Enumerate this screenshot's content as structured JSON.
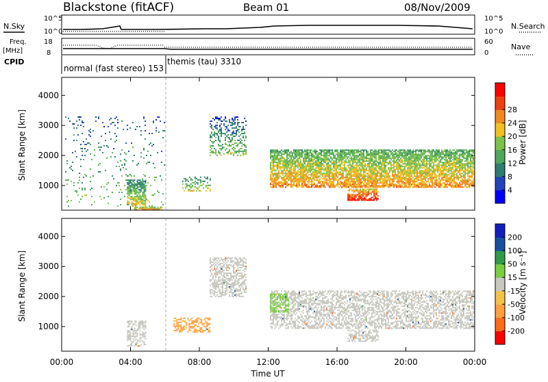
{
  "header": {
    "station": "Blackstone (fitACF)",
    "beam": "Beam 01",
    "date": "08/Nov/2009"
  },
  "left_labels": {
    "nsky": "N.Sky",
    "freq_line1": "Freq.",
    "freq_line2": "[MHz]",
    "cpid": "CPID"
  },
  "right_labels": {
    "nsearch": "N.Search",
    "nave": "Nave"
  },
  "ticks": {
    "noise_top_left": "10^5",
    "noise_bottom_left": "10^0",
    "noise_top_right": "10^5",
    "noise_bottom_right": "10^0",
    "freq_top": "18",
    "freq_bottom": "8",
    "nave_top": "60",
    "nave_bottom": "0"
  },
  "cpid": {
    "mode1": "normal (fast stereo) 153",
    "mode2": "themis (tau) 3310"
  },
  "colors": {
    "power": [
      "#0000ff",
      "#2244bb",
      "#2e7d6e",
      "#4fa75a",
      "#7cc24a",
      "#f0c020",
      "#f08a20",
      "#ee4010",
      "#ff0000"
    ],
    "velocity": [
      "#ff0000",
      "#ff6a1a",
      "#ffa040",
      "#f2c24a",
      "#c8c8c0",
      "#78d040",
      "#2f9a48",
      "#1850a0",
      "#1020c0"
    ]
  },
  "chart_data": [
    {
      "type": "heatmap",
      "quantity": "Power",
      "ylabel": "Slant Range [km]",
      "colorbar_label": "Power [dB]",
      "colorbar_ticks": [
        "4",
        "8",
        "12",
        "16",
        "20",
        "24",
        "28"
      ],
      "ylim": [
        180,
        4600
      ],
      "yticks": [
        "1000",
        "2000",
        "3000",
        "4000"
      ],
      "xlim": [
        "00:00",
        "24:00"
      ],
      "scatter_regions": [
        {
          "t_start": 0.2,
          "t_end": 6.0,
          "r_min": 300,
          "r_max": 3300,
          "level": 8,
          "density": "sparse"
        },
        {
          "t_start": 3.8,
          "t_end": 4.9,
          "r_min": 350,
          "r_max": 1200,
          "level": 12,
          "density": "dense"
        },
        {
          "t_start": 4.2,
          "t_end": 5.8,
          "r_min": 180,
          "r_max": 300,
          "level": 20,
          "density": "dense"
        },
        {
          "t_start": 7.0,
          "t_end": 8.6,
          "r_min": 800,
          "r_max": 1300,
          "level": 12,
          "density": "medium"
        },
        {
          "t_start": 8.6,
          "t_end": 10.7,
          "r_min": 2000,
          "r_max": 3300,
          "level": 8,
          "density": "medium"
        },
        {
          "t_start": 12.1,
          "t_end": 24.0,
          "r_min": 950,
          "r_max": 2200,
          "level": 16,
          "density": "dense"
        },
        {
          "t_start": 16.6,
          "t_end": 18.4,
          "r_min": 500,
          "r_max": 900,
          "level": 24,
          "density": "dense"
        }
      ]
    },
    {
      "type": "heatmap",
      "quantity": "Velocity",
      "ylabel": "Slant Range [km]",
      "colorbar_label": "Velocity [m s⁻¹]",
      "colorbar_ticks": [
        "-200",
        "-100",
        "-50",
        "-15",
        "15",
        "50",
        "100",
        "200"
      ],
      "ylim": [
        180,
        4600
      ],
      "yticks": [
        "1000",
        "2000",
        "3000",
        "4000"
      ],
      "xlim": [
        "00:00",
        "24:00"
      ],
      "xticks": [
        "00:00",
        "04:00",
        "08:00",
        "12:00",
        "16:00",
        "20:00",
        "00:00"
      ],
      "xlabel": "Time UT",
      "scatter_regions": [
        {
          "t_start": 3.8,
          "t_end": 4.9,
          "r_min": 350,
          "r_max": 1200,
          "velocity": 0
        },
        {
          "t_start": 6.5,
          "t_end": 8.6,
          "r_min": 800,
          "r_max": 1300,
          "velocity": -60
        },
        {
          "t_start": 8.6,
          "t_end": 10.7,
          "r_min": 2000,
          "r_max": 3300,
          "velocity": 0
        },
        {
          "t_start": 12.1,
          "t_end": 24.0,
          "r_min": 950,
          "r_max": 2200,
          "velocity": 0
        },
        {
          "t_start": 12.1,
          "t_end": 13.2,
          "r_min": 1500,
          "r_max": 2100,
          "velocity": 30
        },
        {
          "t_start": 16.6,
          "t_end": 18.4,
          "r_min": 500,
          "r_max": 900,
          "velocity": 0
        }
      ]
    }
  ]
}
